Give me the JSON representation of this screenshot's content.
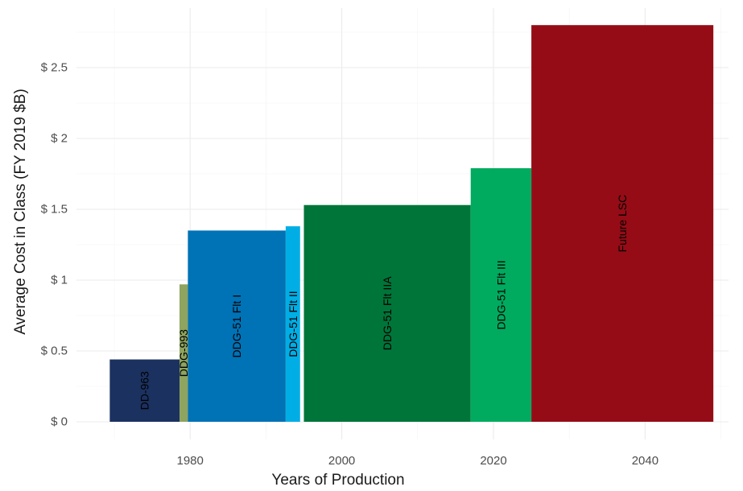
{
  "chart_data": {
    "type": "bar",
    "title": "",
    "xlabel": "Years of Production",
    "ylabel": "Average Cost in Class (FY 2019 $B)",
    "xlim": [
      1965.5,
      1984.0
    ],
    "ylim": [
      0,
      2.8
    ],
    "x_ticks": [
      1980,
      2000,
      2020,
      2040
    ],
    "x_tick_labels": [
      "1980",
      "2000",
      "2020",
      "2040"
    ],
    "y_ticks": [
      0,
      0.5,
      1,
      1.5,
      2,
      2.5
    ],
    "y_tick_labels": [
      "$ 0",
      "$ 0.5",
      "$ 1",
      "$ 1.5",
      "$ 2",
      "$ 2.5"
    ],
    "grid": true,
    "legend": "none",
    "series": [
      {
        "label": "DD-963",
        "x_start": 1969.4,
        "x_end": 1978.6,
        "value": 0.44,
        "color": "#1b3160"
      },
      {
        "label": "DDG-993",
        "x_start": 1978.6,
        "x_end": 1979.7,
        "value": 0.97,
        "color": "#8ea45f"
      },
      {
        "label": "DDG-51 Flt I",
        "x_start": 1979.7,
        "x_end": 1992.6,
        "value": 1.35,
        "color": "#0072b6"
      },
      {
        "label": "DDG-51 Flt II",
        "x_start": 1992.6,
        "x_end": 1994.5,
        "value": 1.38,
        "color": "#00aee5"
      },
      {
        "label": "DDG-51 Flt IIA",
        "x_start": 1995.0,
        "x_end": 2017.0,
        "value": 1.53,
        "color": "#007539"
      },
      {
        "label": "DDG-51 Flt III",
        "x_start": 2017.0,
        "x_end": 2025.0,
        "value": 1.79,
        "color": "#00ab5f"
      },
      {
        "label": "Future LSC",
        "x_start": 2025.0,
        "x_end": 2049.0,
        "value": 2.8,
        "color": "#950c16"
      }
    ]
  }
}
